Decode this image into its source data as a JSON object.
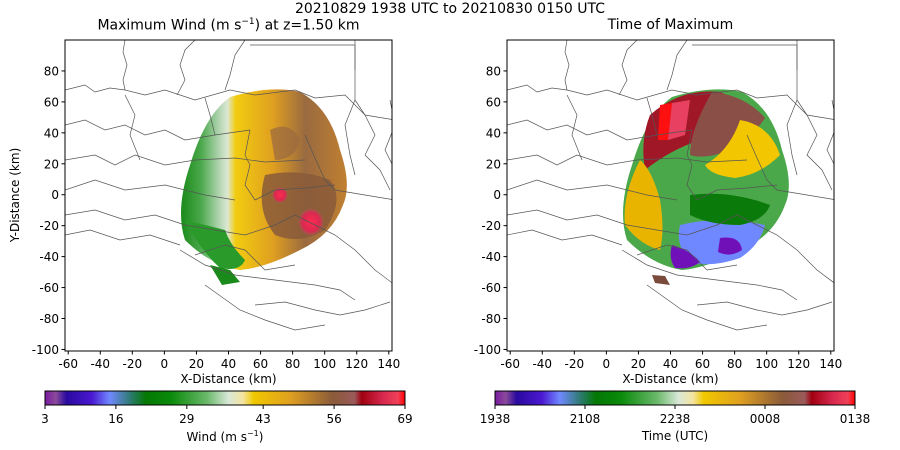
{
  "figure": {
    "suptitle": "20210829 1938 UTC to 20210830 0150 UTC"
  },
  "panels": [
    {
      "title_main": "Maximum Wind (m s",
      "title_sup": "−1",
      "title_tail": ") at z=1.50 km",
      "xlabel": "X-Distance (km)",
      "ylabel": "Y-Distance (km)",
      "colorbar_label_main": "Wind (m s",
      "colorbar_label_sup": "−1",
      "colorbar_label_tail": ")"
    },
    {
      "title": "Time of Maximum",
      "xlabel": "X-Distance (km)",
      "colorbar_label": "Time (UTC)"
    }
  ],
  "chart_data": [
    {
      "type": "heatmap",
      "title": "Maximum Wind (m s^-1) at z=1.50 km",
      "xlabel": "X-Distance (km)",
      "ylabel": "Y-Distance (km)",
      "xlim": [
        -62,
        142
      ],
      "ylim": [
        -101,
        100
      ],
      "xticks": [
        "-60",
        "-40",
        "-20",
        "0",
        "20",
        "40",
        "60",
        "80",
        "100",
        "120",
        "140"
      ],
      "yticks": [
        "80",
        "60",
        "40",
        "20",
        "0",
        "-20",
        "-40",
        "-60",
        "-80",
        "-100"
      ],
      "colorbar": {
        "label": "Wind (m s^-1)",
        "range": [
          3,
          69
        ],
        "ticks": [
          "3",
          "16",
          "29",
          "43",
          "56",
          "69"
        ]
      },
      "field_summary": {
        "west_edge_values": "green 20-35",
        "center_values": "yellow/orange 40-50",
        "east_values": "brown 50-58",
        "maxima_values": "red 60-69 near (70,-5) and (95,-22)"
      }
    },
    {
      "type": "heatmap",
      "title": "Time of Maximum",
      "xlabel": "X-Distance (km)",
      "ylabel": "",
      "xlim": [
        -62,
        142
      ],
      "ylim": [
        -101,
        100
      ],
      "xticks": [
        "-60",
        "-40",
        "-20",
        "0",
        "20",
        "40",
        "60",
        "80",
        "100",
        "120",
        "140"
      ],
      "yticks": [
        "80",
        "60",
        "40",
        "20",
        "0",
        "-20",
        "-40",
        "-60",
        "-80",
        "-100"
      ],
      "colorbar": {
        "label": "Time (UTC)",
        "ticks": [
          "1938",
          "2108",
          "2238",
          "0008",
          "0138"
        ]
      }
    }
  ],
  "colormap": [
    "#6a1a9a",
    "#3a10b8",
    "#6f86ff",
    "#0a7d0a",
    "#4aa84a",
    "#d6e8d6",
    "#f2c600",
    "#d89a2a",
    "#8a5a3a",
    "#a00018",
    "#e83a5a",
    "#ff1010"
  ]
}
